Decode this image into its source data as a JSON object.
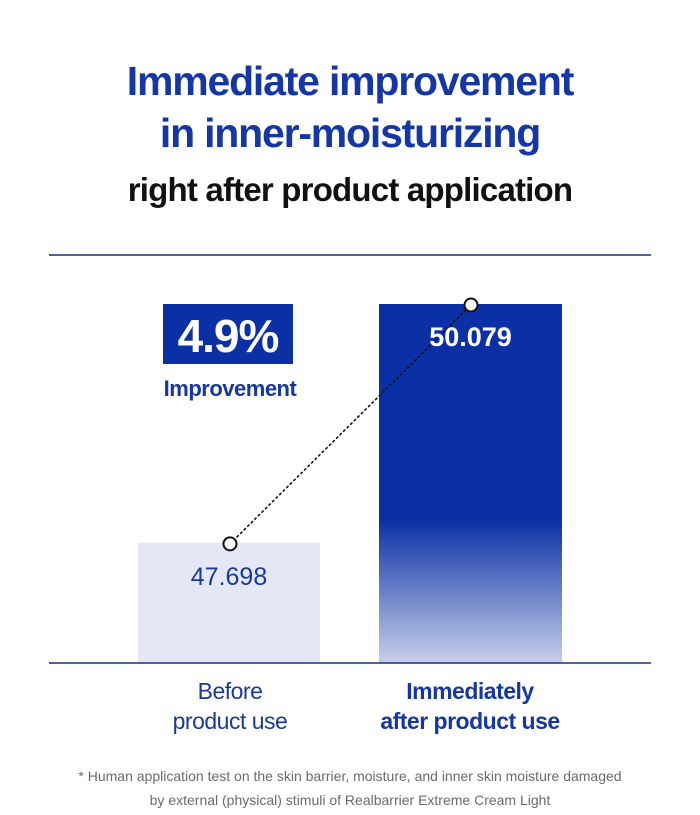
{
  "heading": {
    "line1": "Immediate improvement",
    "line2": "in inner-moisturizing",
    "subtitle": "right after product application"
  },
  "chart_data": {
    "type": "bar",
    "categories": [
      [
        "Before",
        "product use"
      ],
      [
        "Immediately",
        "after product use"
      ]
    ],
    "values": [
      47.698,
      50.079
    ],
    "value_labels": [
      "47.698",
      "50.079"
    ],
    "ylim": [
      46.5,
      50.079
    ],
    "callout": {
      "value": "4.9%",
      "label": "Improvement"
    },
    "colors": {
      "before": "#e4e8f5",
      "after": "#0b2fa4",
      "after_fade": "#c7d0ea",
      "label_before": "#1a3a9a",
      "label_after": "#ffffff",
      "rule": "#1b2f7a",
      "callout_bg": "#0b2fa4"
    }
  },
  "footnote": {
    "line1": "* Human application test on the skin barrier, moisture, and inner skin moisture damaged",
    "line2": "by external (physical) stimuli of Realbarrier Extreme Cream Light"
  }
}
